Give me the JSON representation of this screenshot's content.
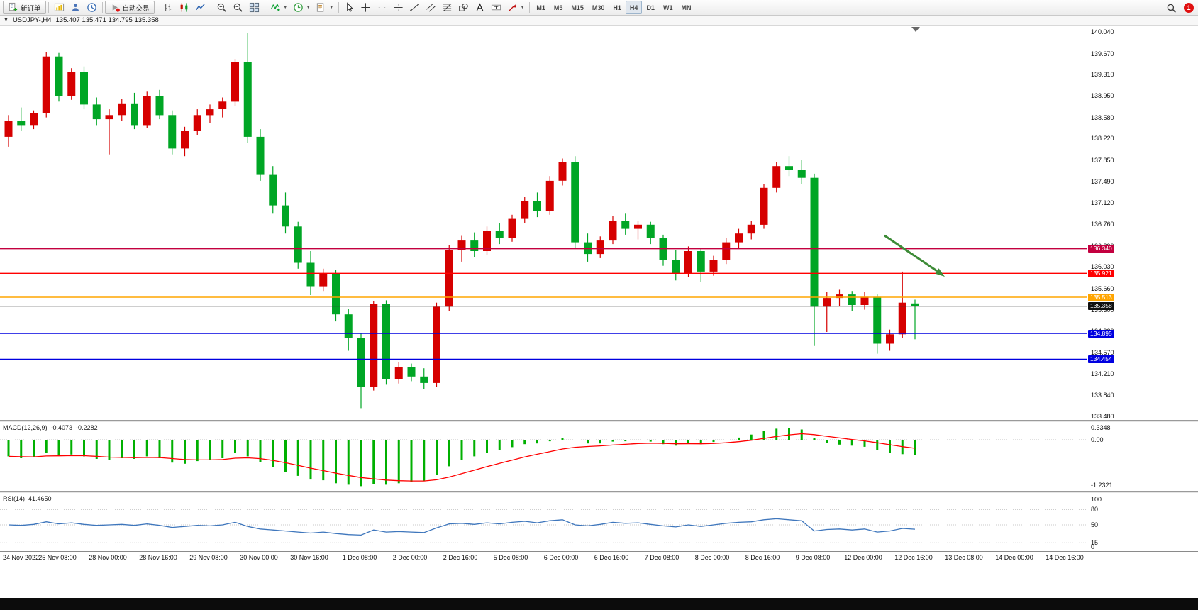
{
  "toolbar": {
    "notification_count": "1",
    "active_timeframe": "H4",
    "groups": [
      {
        "name": "trade",
        "items": [
          {
            "name": "new-order-button",
            "icon": "new-order-icon",
            "label": "新订单"
          }
        ]
      },
      {
        "name": "panels",
        "items": [
          {
            "name": "charts-button",
            "icon": "chart-window-icon"
          },
          {
            "name": "profiles-button",
            "icon": "profiles-icon"
          },
          {
            "name": "market-watch-button",
            "icon": "market-watch-icon"
          }
        ]
      },
      {
        "name": "autotrade",
        "items": [
          {
            "name": "autotrading-button",
            "icon": "autotrading-icon",
            "label": "自动交易"
          }
        ]
      },
      {
        "name": "chart-types",
        "items": [
          {
            "name": "bars-button",
            "icon": "bars-icon"
          },
          {
            "name": "candles-button",
            "icon": "candles-icon"
          },
          {
            "name": "line-chart-button",
            "icon": "line-chart-icon"
          }
        ]
      },
      {
        "name": "zoom",
        "items": [
          {
            "name": "zoom-in-button",
            "icon": "zoom-in-icon"
          },
          {
            "name": "zoom-out-button",
            "icon": "zoom-out-icon"
          },
          {
            "name": "tile-windows-button",
            "icon": "tile-windows-icon"
          }
        ]
      },
      {
        "name": "chart-tools",
        "items": [
          {
            "name": "indicators-button",
            "icon": "indicators-icon",
            "dropdown": true
          },
          {
            "name": "periods-button",
            "icon": "periods-icon",
            "dropdown": true
          },
          {
            "name": "templates-button",
            "icon": "templates-icon",
            "dropdown": true
          }
        ]
      },
      {
        "name": "drawing",
        "items": [
          {
            "name": "cursor-button",
            "icon": "cursor-icon"
          },
          {
            "name": "crosshair-button",
            "icon": "crosshair-icon"
          },
          {
            "name": "vertical-line-button",
            "icon": "vertical-line-icon"
          },
          {
            "name": "horizontal-line-button",
            "icon": "horizontal-line-icon"
          },
          {
            "name": "trendline-button",
            "icon": "trendline-icon"
          },
          {
            "name": "channel-button",
            "icon": "channel-icon"
          },
          {
            "name": "fibonacci-button",
            "icon": "fibonacci-icon"
          },
          {
            "name": "shapes-button",
            "icon": "shapes-icon"
          },
          {
            "name": "text-button",
            "icon": "text-icon"
          },
          {
            "name": "label-button",
            "icon": "label-icon"
          },
          {
            "name": "arrows-button",
            "icon": "arrows-icon",
            "dropdown": true
          }
        ]
      },
      {
        "name": "timeframes",
        "items": [
          {
            "name": "timeframe-m1-button",
            "label": "M1"
          },
          {
            "name": "timeframe-m5-button",
            "label": "M5"
          },
          {
            "name": "timeframe-m15-button",
            "label": "M15"
          },
          {
            "name": "timeframe-m30-button",
            "label": "M30"
          },
          {
            "name": "timeframe-h1-button",
            "label": "H1"
          },
          {
            "name": "timeframe-h4-button",
            "label": "H4"
          },
          {
            "name": "timeframe-d1-button",
            "label": "D1"
          },
          {
            "name": "timeframe-w1-button",
            "label": "W1"
          },
          {
            "name": "timeframe-mn-button",
            "label": "MN"
          }
        ]
      }
    ]
  },
  "chart": {
    "symbol_period": "USDJPY-,H4",
    "ohlc_text": "135.407 135.471 134.795 135.358"
  },
  "chart_data": {
    "type": "candlestick",
    "symbol": "USDJPY-",
    "timeframe": "H4",
    "current_ohlc": {
      "open": "135.407",
      "high": "135.471",
      "low": "134.795",
      "close": "135.358"
    },
    "colors": {
      "up": "#D60000",
      "down": "#00A625",
      "bg": "#FFFFFF"
    },
    "price_axis_labels": [
      "140.040",
      "139.670",
      "139.310",
      "138.950",
      "138.580",
      "138.220",
      "137.850",
      "137.490",
      "137.120",
      "136.760",
      "136.390",
      "136.030",
      "135.660",
      "135.300",
      "134.930",
      "134.570",
      "134.210",
      "133.840",
      "133.480"
    ],
    "time_labels": [
      "24 Nov 2022",
      "25 Nov 08:00",
      "28 Nov 00:00",
      "28 Nov 16:00",
      "29 Nov 08:00",
      "30 Nov 00:00",
      "30 Nov 16:00",
      "1 Dec 08:00",
      "2 Dec 00:00",
      "2 Dec 16:00",
      "5 Dec 08:00",
      "6 Dec 00:00",
      "6 Dec 16:00",
      "7 Dec 08:00",
      "8 Dec 00:00",
      "8 Dec 16:00",
      "9 Dec 08:00",
      "12 Dec 00:00",
      "12 Dec 16:00",
      "13 Dec 08:00",
      "14 Dec 00:00",
      "14 Dec 16:00"
    ],
    "hlines": [
      {
        "price": 136.34,
        "label": "136.340",
        "color": "#C3003F"
      },
      {
        "price": 135.921,
        "label": "135.921",
        "color": "#FF0000"
      },
      {
        "price": 135.513,
        "label": "135.513",
        "color": "#FFA500"
      },
      {
        "price": 134.895,
        "label": "134.895",
        "color": "#0000E0"
      },
      {
        "price": 134.454,
        "label": "134.454",
        "color": "#0000E0"
      }
    ],
    "bid_line": {
      "price": 135.358,
      "label": "135.358",
      "color": "#111111"
    },
    "arrow_annotation": {
      "color": "#3D8B37"
    },
    "candles": [
      [
        138.25,
        138.62,
        138.08,
        138.52
      ],
      [
        138.52,
        138.75,
        138.35,
        138.45
      ],
      [
        138.45,
        138.7,
        138.38,
        138.65
      ],
      [
        138.65,
        139.7,
        138.58,
        139.62
      ],
      [
        139.62,
        139.68,
        138.85,
        138.95
      ],
      [
        138.95,
        139.42,
        138.88,
        139.35
      ],
      [
        139.35,
        139.45,
        138.72,
        138.8
      ],
      [
        138.8,
        138.92,
        138.45,
        138.55
      ],
      [
        138.55,
        138.72,
        137.95,
        138.62
      ],
      [
        138.62,
        138.9,
        138.52,
        138.82
      ],
      [
        138.82,
        139.0,
        138.38,
        138.45
      ],
      [
        138.45,
        139.02,
        138.4,
        138.95
      ],
      [
        138.95,
        139.05,
        138.55,
        138.62
      ],
      [
        138.62,
        138.7,
        137.95,
        138.05
      ],
      [
        138.05,
        138.42,
        137.92,
        138.35
      ],
      [
        138.35,
        138.72,
        138.28,
        138.62
      ],
      [
        138.62,
        138.8,
        138.48,
        138.72
      ],
      [
        138.72,
        138.92,
        138.58,
        138.85
      ],
      [
        138.85,
        139.58,
        138.78,
        139.52
      ],
      [
        139.52,
        140.02,
        138.15,
        138.25
      ],
      [
        138.25,
        138.38,
        137.5,
        137.6
      ],
      [
        137.6,
        137.75,
        136.95,
        137.08
      ],
      [
        137.08,
        137.3,
        136.6,
        136.72
      ],
      [
        136.72,
        136.8,
        136.0,
        136.1
      ],
      [
        136.1,
        136.3,
        135.55,
        135.7
      ],
      [
        135.7,
        136.0,
        135.62,
        135.92
      ],
      [
        135.92,
        135.98,
        135.1,
        135.22
      ],
      [
        135.22,
        135.32,
        134.6,
        134.82
      ],
      [
        134.82,
        134.9,
        133.62,
        133.98
      ],
      [
        133.98,
        135.45,
        133.92,
        135.4
      ],
      [
        135.4,
        135.46,
        134.02,
        134.12
      ],
      [
        134.12,
        134.4,
        134.04,
        134.32
      ],
      [
        134.32,
        134.38,
        134.08,
        134.16
      ],
      [
        134.16,
        134.3,
        133.95,
        134.05
      ],
      [
        134.05,
        135.42,
        133.98,
        135.35
      ],
      [
        135.35,
        136.4,
        135.28,
        136.32
      ],
      [
        136.32,
        136.56,
        136.12,
        136.48
      ],
      [
        136.48,
        136.62,
        136.2,
        136.3
      ],
      [
        136.3,
        136.72,
        136.24,
        136.65
      ],
      [
        136.65,
        136.78,
        136.42,
        136.52
      ],
      [
        136.52,
        136.92,
        136.46,
        136.85
      ],
      [
        136.85,
        137.22,
        136.78,
        137.15
      ],
      [
        137.15,
        137.3,
        136.88,
        136.98
      ],
      [
        136.98,
        137.58,
        136.92,
        137.5
      ],
      [
        137.5,
        137.88,
        137.42,
        137.82
      ],
      [
        137.82,
        137.92,
        136.35,
        136.45
      ],
      [
        136.45,
        136.6,
        136.12,
        136.25
      ],
      [
        136.25,
        136.55,
        136.18,
        136.48
      ],
      [
        136.48,
        136.9,
        136.42,
        136.82
      ],
      [
        136.82,
        136.95,
        136.58,
        136.68
      ],
      [
        136.68,
        136.82,
        136.5,
        136.75
      ],
      [
        136.75,
        136.8,
        136.42,
        136.52
      ],
      [
        136.52,
        136.58,
        136.05,
        136.15
      ],
      [
        136.15,
        136.32,
        135.8,
        135.92
      ],
      [
        135.92,
        136.38,
        135.86,
        136.3
      ],
      [
        136.3,
        136.35,
        135.78,
        135.95
      ],
      [
        135.95,
        136.22,
        135.88,
        136.15
      ],
      [
        136.15,
        136.52,
        136.08,
        136.45
      ],
      [
        136.45,
        136.68,
        136.35,
        136.6
      ],
      [
        136.6,
        136.82,
        136.5,
        136.75
      ],
      [
        136.75,
        137.45,
        136.68,
        137.38
      ],
      [
        137.38,
        137.82,
        137.3,
        137.75
      ],
      [
        137.75,
        137.92,
        137.58,
        137.68
      ],
      [
        137.68,
        137.85,
        137.45,
        137.55
      ],
      [
        137.55,
        137.62,
        134.68,
        135.35
      ],
      [
        135.35,
        135.6,
        134.92,
        135.5
      ],
      [
        135.5,
        135.64,
        135.36,
        135.56
      ],
      [
        135.56,
        135.62,
        135.28,
        135.38
      ],
      [
        135.38,
        135.6,
        135.3,
        135.52
      ],
      [
        135.52,
        135.56,
        134.55,
        134.72
      ],
      [
        134.72,
        134.96,
        134.6,
        134.88
      ],
      [
        134.88,
        135.95,
        134.82,
        135.42
      ],
      [
        135.407,
        135.471,
        134.795,
        135.358
      ]
    ],
    "macd": {
      "label": "MACD(12,26,9)",
      "value_main": "-0.4073",
      "value_signal": "-0.2282",
      "axis_labels": [
        "0.3348",
        "0.00",
        "-1.2321"
      ],
      "histogram_color": "#00B000",
      "signal_color": "#FF0000",
      "values": [
        -0.45,
        -0.5,
        -0.48,
        -0.35,
        -0.42,
        -0.4,
        -0.45,
        -0.52,
        -0.55,
        -0.5,
        -0.52,
        -0.45,
        -0.5,
        -0.62,
        -0.65,
        -0.58,
        -0.55,
        -0.5,
        -0.35,
        -0.45,
        -0.6,
        -0.75,
        -0.88,
        -0.98,
        -1.08,
        -1.1,
        -1.18,
        -1.22,
        -1.26,
        -1.2,
        -1.22,
        -1.18,
        -1.15,
        -1.12,
        -0.95,
        -0.72,
        -0.55,
        -0.45,
        -0.35,
        -0.28,
        -0.2,
        -0.12,
        -0.1,
        -0.04,
        0.04,
        -0.02,
        -0.1,
        -0.1,
        -0.05,
        -0.04,
        -0.02,
        -0.05,
        -0.12,
        -0.16,
        -0.1,
        -0.12,
        -0.06,
        0.0,
        0.06,
        0.14,
        0.24,
        0.3,
        0.31,
        0.28,
        0.04,
        -0.08,
        -0.13,
        -0.16,
        -0.19,
        -0.28,
        -0.35,
        -0.39,
        -0.4073
      ]
    },
    "rsi": {
      "label": "RSI(14)",
      "value": "41.4650",
      "axis_labels": [
        "100",
        "80",
        "50",
        "15",
        "0"
      ],
      "levels": [
        80,
        50,
        15
      ],
      "line_color": "#3E76BC",
      "values": [
        50,
        49,
        51,
        56,
        52,
        54,
        51,
        49,
        50,
        51,
        49,
        52,
        49,
        45,
        47,
        49,
        48,
        50,
        55,
        47,
        42,
        40,
        38,
        36,
        34,
        36,
        33,
        31,
        30,
        40,
        36,
        37,
        36,
        35,
        44,
        52,
        53,
        51,
        54,
        52,
        55,
        57,
        54,
        58,
        60,
        50,
        48,
        51,
        55,
        53,
        54,
        51,
        48,
        46,
        50,
        47,
        50,
        53,
        55,
        56,
        60,
        62,
        60,
        58,
        38,
        41,
        42,
        40,
        42,
        36,
        38,
        43,
        41.465
      ]
    }
  }
}
